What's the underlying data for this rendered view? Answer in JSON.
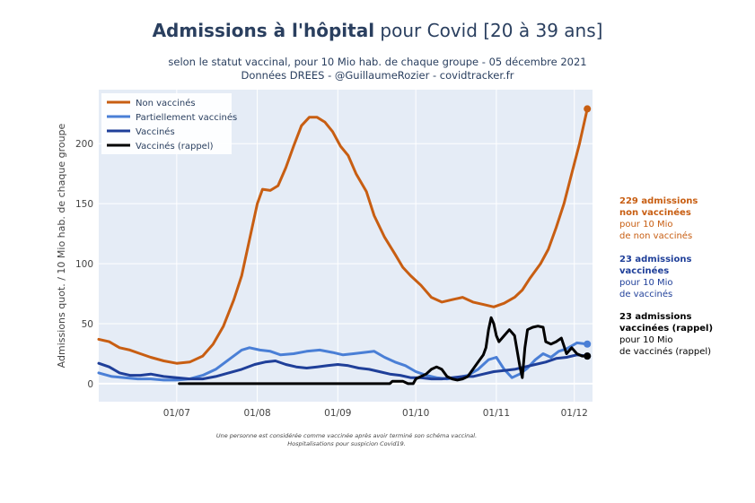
{
  "title": {
    "bold": "Admissions à l'hôpital",
    "rest": " pour Covid [20 à 39 ans]"
  },
  "subtitle_line1": "selon le statut vaccinal, pour 10 Mio hab. de chaque groupe - 05 décembre 2021",
  "subtitle_line2": "Données DREES - @GuillaumeRozier - covidtracker.fr",
  "annotations": [
    {
      "bold1": "229 admissions",
      "bold2": "non vaccinées",
      "line3": "pour 10 Mio",
      "line4": "de non vaccinés",
      "color": "#c85e12"
    },
    {
      "bold1": "23 admissions",
      "bold2": "vaccinées",
      "line3": "pour 10 Mio",
      "line4": "de vaccinés",
      "color": "#1f3f99"
    },
    {
      "bold1": "23 admissions",
      "bold2": "vaccinées (rappel)",
      "line3": "pour 10 Mio",
      "line4": "de vaccinés (rappel)",
      "color": "#000000"
    }
  ],
  "footnote_line1": "Une personne est considérée comme vaccinée après avoir terminé son schéma vaccinal.",
  "footnote_line2": "Hospitalisations pour suspicion Covid19.",
  "chart_data": {
    "type": "line",
    "title": "Admissions à l'hôpital pour Covid [20 à 39 ans]",
    "ylabel": "Admissions quot. / 10 Mio hab. de chaque groupe",
    "xlabel": "",
    "x_unit": "day (0 = 2021-06-01)",
    "xlim": [
      0,
      190
    ],
    "ylim": [
      -15,
      245
    ],
    "yticks": [
      0,
      50,
      100,
      150,
      200
    ],
    "xticks": [
      {
        "label": "01/07",
        "x": 30
      },
      {
        "label": "01/08",
        "x": 61
      },
      {
        "label": "01/09",
        "x": 92
      },
      {
        "label": "01/10",
        "x": 122
      },
      {
        "label": "01/11",
        "x": 153
      },
      {
        "label": "01/12",
        "x": 183
      }
    ],
    "grid": true,
    "legend_position": "top-left",
    "series": [
      {
        "name": "Non vaccinés",
        "color": "#c85e12",
        "points": [
          [
            0,
            37
          ],
          [
            4,
            35
          ],
          [
            8,
            30
          ],
          [
            12,
            28
          ],
          [
            16,
            25
          ],
          [
            20,
            22
          ],
          [
            25,
            19
          ],
          [
            30,
            17
          ],
          [
            35,
            18
          ],
          [
            40,
            23
          ],
          [
            44,
            33
          ],
          [
            48,
            48
          ],
          [
            52,
            70
          ],
          [
            55,
            90
          ],
          [
            58,
            120
          ],
          [
            61,
            150
          ],
          [
            63,
            162
          ],
          [
            66,
            161
          ],
          [
            69,
            165
          ],
          [
            72,
            180
          ],
          [
            75,
            198
          ],
          [
            78,
            215
          ],
          [
            81,
            222
          ],
          [
            84,
            222
          ],
          [
            87,
            218
          ],
          [
            90,
            210
          ],
          [
            93,
            198
          ],
          [
            96,
            190
          ],
          [
            99,
            175
          ],
          [
            103,
            160
          ],
          [
            106,
            140
          ],
          [
            110,
            122
          ],
          [
            114,
            108
          ],
          [
            117,
            97
          ],
          [
            120,
            90
          ],
          [
            124,
            82
          ],
          [
            128,
            72
          ],
          [
            132,
            68
          ],
          [
            136,
            70
          ],
          [
            140,
            72
          ],
          [
            144,
            68
          ],
          [
            148,
            66
          ],
          [
            152,
            64
          ],
          [
            156,
            67
          ],
          [
            160,
            72
          ],
          [
            163,
            78
          ],
          [
            166,
            88
          ],
          [
            170,
            100
          ],
          [
            173,
            112
          ],
          [
            176,
            130
          ],
          [
            179,
            150
          ],
          [
            182,
            175
          ],
          [
            185,
            200
          ],
          [
            188,
            229
          ]
        ]
      },
      {
        "name": "Partiellement vaccinés",
        "color": "#4a7fd6",
        "points": [
          [
            0,
            9
          ],
          [
            5,
            6
          ],
          [
            10,
            5
          ],
          [
            15,
            4
          ],
          [
            20,
            4
          ],
          [
            25,
            3
          ],
          [
            30,
            3
          ],
          [
            35,
            4
          ],
          [
            40,
            7
          ],
          [
            45,
            12
          ],
          [
            50,
            20
          ],
          [
            55,
            28
          ],
          [
            58,
            30
          ],
          [
            62,
            28
          ],
          [
            66,
            27
          ],
          [
            70,
            24
          ],
          [
            75,
            25
          ],
          [
            80,
            27
          ],
          [
            85,
            28
          ],
          [
            90,
            26
          ],
          [
            94,
            24
          ],
          [
            98,
            25
          ],
          [
            102,
            26
          ],
          [
            106,
            27
          ],
          [
            110,
            22
          ],
          [
            114,
            18
          ],
          [
            118,
            15
          ],
          [
            122,
            10
          ],
          [
            126,
            7
          ],
          [
            130,
            5
          ],
          [
            134,
            4
          ],
          [
            138,
            5
          ],
          [
            142,
            7
          ],
          [
            146,
            12
          ],
          [
            150,
            20
          ],
          [
            153,
            22
          ],
          [
            156,
            12
          ],
          [
            159,
            5
          ],
          [
            162,
            8
          ],
          [
            165,
            13
          ],
          [
            168,
            20
          ],
          [
            171,
            25
          ],
          [
            174,
            22
          ],
          [
            177,
            27
          ],
          [
            180,
            29
          ],
          [
            184,
            34
          ],
          [
            188,
            33
          ]
        ]
      },
      {
        "name": "Vaccinés",
        "color": "#1f3f99",
        "points": [
          [
            0,
            17
          ],
          [
            4,
            14
          ],
          [
            8,
            9
          ],
          [
            12,
            7
          ],
          [
            16,
            7
          ],
          [
            20,
            8
          ],
          [
            25,
            6
          ],
          [
            30,
            5
          ],
          [
            35,
            4
          ],
          [
            40,
            4
          ],
          [
            45,
            6
          ],
          [
            50,
            9
          ],
          [
            55,
            12
          ],
          [
            60,
            16
          ],
          [
            64,
            18
          ],
          [
            68,
            19
          ],
          [
            72,
            16
          ],
          [
            76,
            14
          ],
          [
            80,
            13
          ],
          [
            84,
            14
          ],
          [
            88,
            15
          ],
          [
            92,
            16
          ],
          [
            96,
            15
          ],
          [
            100,
            13
          ],
          [
            104,
            12
          ],
          [
            108,
            10
          ],
          [
            112,
            8
          ],
          [
            116,
            7
          ],
          [
            120,
            5
          ],
          [
            124,
            5
          ],
          [
            128,
            4
          ],
          [
            132,
            4
          ],
          [
            136,
            5
          ],
          [
            140,
            6
          ],
          [
            144,
            6
          ],
          [
            148,
            8
          ],
          [
            152,
            10
          ],
          [
            156,
            11
          ],
          [
            160,
            12
          ],
          [
            164,
            14
          ],
          [
            168,
            16
          ],
          [
            172,
            18
          ],
          [
            176,
            21
          ],
          [
            180,
            22
          ],
          [
            184,
            24
          ],
          [
            188,
            23
          ]
        ]
      },
      {
        "name": "Vaccinés (rappel)",
        "color": "#000000",
        "points": [
          [
            31,
            0
          ],
          [
            60,
            0
          ],
          [
            90,
            0
          ],
          [
            112,
            0
          ],
          [
            113,
            2
          ],
          [
            117,
            2
          ],
          [
            119,
            0
          ],
          [
            121,
            0
          ],
          [
            122,
            4
          ],
          [
            124,
            6
          ],
          [
            126,
            8
          ],
          [
            128,
            12
          ],
          [
            130,
            14
          ],
          [
            132,
            12
          ],
          [
            134,
            6
          ],
          [
            136,
            4
          ],
          [
            138,
            3
          ],
          [
            140,
            4
          ],
          [
            142,
            6
          ],
          [
            144,
            12
          ],
          [
            146,
            18
          ],
          [
            148,
            24
          ],
          [
            149,
            30
          ],
          [
            150,
            45
          ],
          [
            151,
            55
          ],
          [
            152,
            50
          ],
          [
            153,
            40
          ],
          [
            154,
            35
          ],
          [
            156,
            40
          ],
          [
            158,
            45
          ],
          [
            160,
            40
          ],
          [
            162,
            15
          ],
          [
            163,
            5
          ],
          [
            164,
            30
          ],
          [
            165,
            45
          ],
          [
            167,
            47
          ],
          [
            169,
            48
          ],
          [
            171,
            47
          ],
          [
            172,
            35
          ],
          [
            174,
            33
          ],
          [
            176,
            35
          ],
          [
            178,
            38
          ],
          [
            180,
            25
          ],
          [
            182,
            30
          ],
          [
            184,
            25
          ],
          [
            186,
            23
          ],
          [
            188,
            23
          ]
        ]
      }
    ]
  }
}
